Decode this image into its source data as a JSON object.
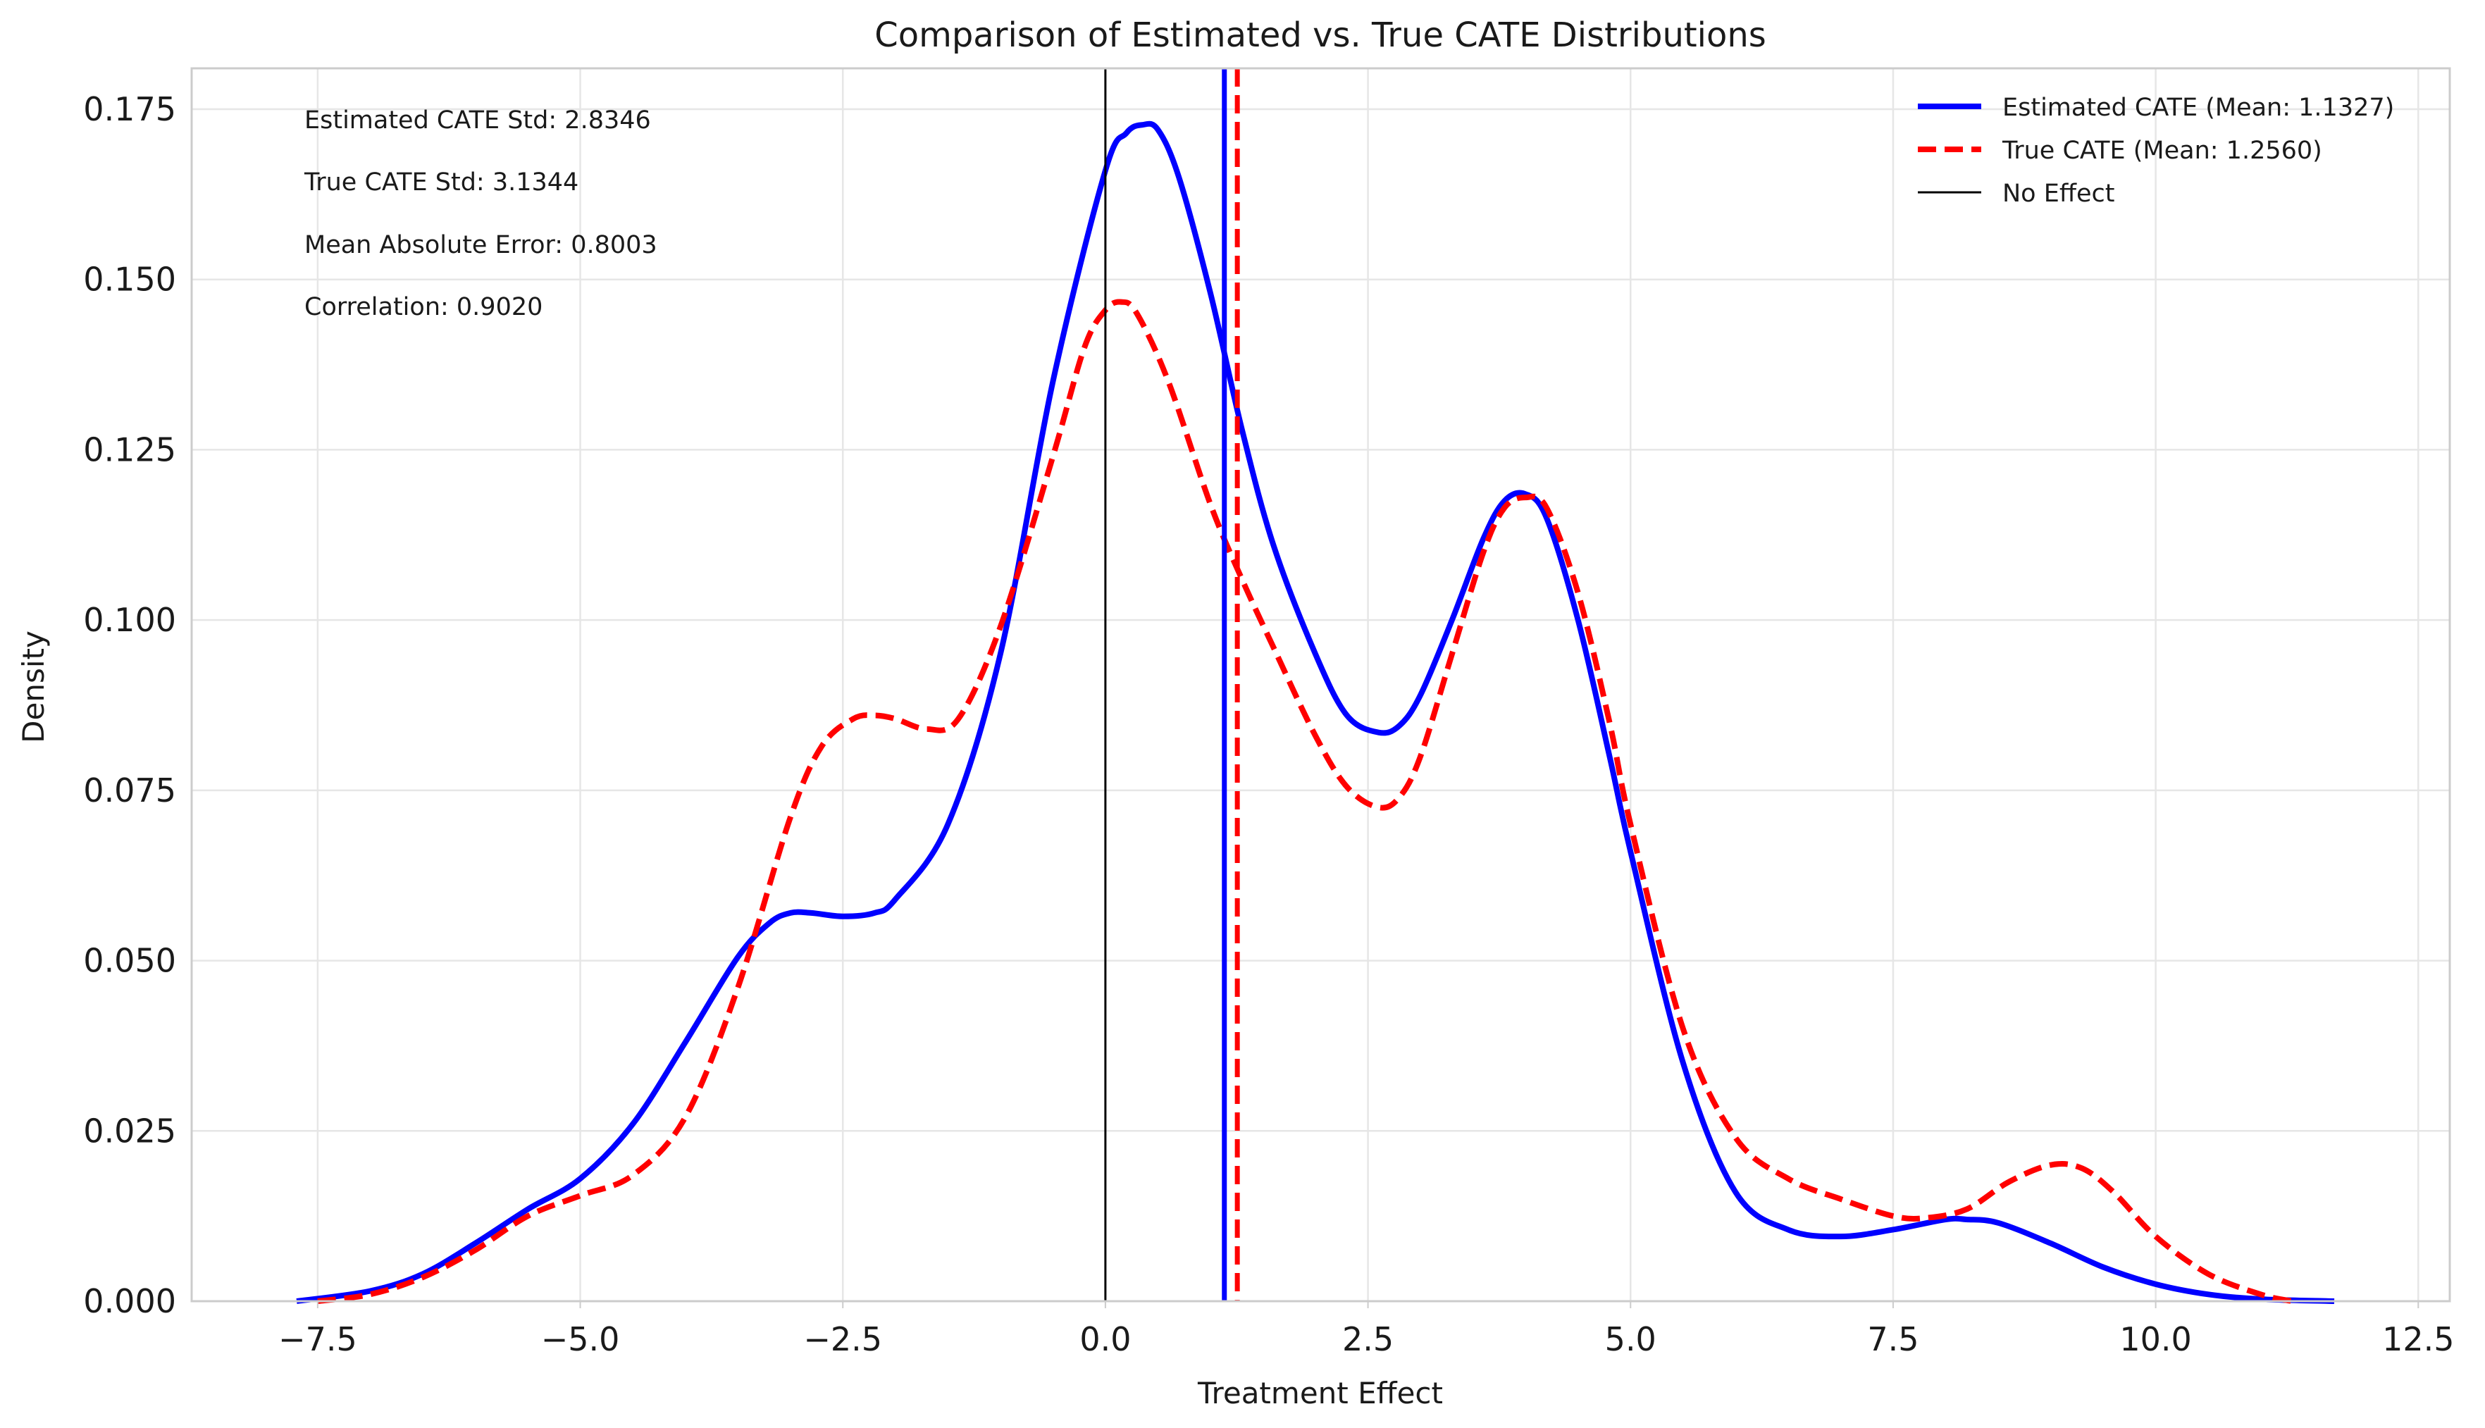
{
  "chart_data": {
    "type": "line",
    "title": "Comparison of Estimated vs. True CATE Distributions",
    "xlabel": "Treatment Effect",
    "ylabel": "Density",
    "xlim": [
      -8.7,
      12.8
    ],
    "ylim": [
      0.0,
      0.181
    ],
    "x_ticks": [
      -7.5,
      -5.0,
      -2.5,
      0.0,
      2.5,
      5.0,
      7.5,
      10.0,
      12.5
    ],
    "x_tick_labels": [
      "−7.5",
      "−5.0",
      "−2.5",
      "0.0",
      "2.5",
      "5.0",
      "7.5",
      "10.0",
      "12.5"
    ],
    "y_ticks": [
      0.0,
      0.025,
      0.05,
      0.075,
      0.1,
      0.125,
      0.15,
      0.175
    ],
    "y_tick_labels": [
      "0.000",
      "0.025",
      "0.050",
      "0.075",
      "0.100",
      "0.125",
      "0.150",
      "0.175"
    ],
    "grid": true,
    "legend_position": "top-right",
    "annotations": [
      "Estimated CATE Std: 2.8346",
      "True CATE Std: 3.1344",
      "Mean Absolute Error: 0.8003",
      "Correlation: 0.9020"
    ],
    "series": [
      {
        "name": "Estimated CATE (Mean: 1.1327)",
        "color": "#0000ff",
        "style": "solid",
        "x": [
          -7.7,
          -7.0,
          -6.5,
          -6.0,
          -5.5,
          -5.0,
          -4.5,
          -4.0,
          -3.5,
          -3.2,
          -3.0,
          -2.8,
          -2.5,
          -2.2,
          -2.0,
          -1.5,
          -1.0,
          -0.5,
          0.0,
          0.2,
          0.35,
          0.5,
          0.7,
          1.0,
          1.3,
          1.6,
          2.0,
          2.3,
          2.6,
          2.8,
          3.0,
          3.3,
          3.6,
          3.8,
          4.0,
          4.2,
          4.5,
          4.8,
          5.0,
          5.5,
          6.0,
          6.5,
          7.0,
          7.5,
          8.0,
          8.2,
          8.5,
          9.0,
          9.5,
          10.0,
          10.5,
          11.0,
          11.7
        ],
        "y": [
          0.0,
          0.0015,
          0.004,
          0.0085,
          0.0135,
          0.018,
          0.026,
          0.038,
          0.0505,
          0.0555,
          0.057,
          0.057,
          0.0565,
          0.057,
          0.059,
          0.07,
          0.095,
          0.135,
          0.166,
          0.1715,
          0.1727,
          0.172,
          0.165,
          0.148,
          0.128,
          0.111,
          0.095,
          0.086,
          0.0835,
          0.0845,
          0.089,
          0.1,
          0.112,
          0.1175,
          0.1185,
          0.115,
          0.1,
          0.08,
          0.066,
          0.035,
          0.016,
          0.0105,
          0.0095,
          0.0105,
          0.012,
          0.012,
          0.0115,
          0.0085,
          0.005,
          0.0025,
          0.001,
          0.0003,
          0.0
        ]
      },
      {
        "name": "True CATE (Mean: 1.2560)",
        "color": "#ff0000",
        "style": "dashed",
        "x": [
          -7.5,
          -7.0,
          -6.5,
          -6.0,
          -5.5,
          -5.0,
          -4.5,
          -4.0,
          -3.5,
          -3.0,
          -2.7,
          -2.4,
          -2.2,
          -2.0,
          -1.7,
          -1.4,
          -1.0,
          -0.5,
          -0.2,
          0.0,
          0.15,
          0.3,
          0.6,
          1.0,
          1.3,
          1.6,
          2.0,
          2.3,
          2.6,
          2.8,
          3.0,
          3.3,
          3.6,
          3.8,
          4.0,
          4.2,
          4.5,
          4.8,
          5.0,
          5.5,
          6.0,
          6.5,
          7.0,
          7.5,
          7.8,
          8.2,
          8.6,
          9.0,
          9.3,
          9.6,
          10.0,
          10.5,
          11.0,
          11.3
        ],
        "y": [
          0.0,
          0.001,
          0.0035,
          0.0075,
          0.0125,
          0.0155,
          0.0185,
          0.027,
          0.046,
          0.071,
          0.0815,
          0.0855,
          0.086,
          0.0855,
          0.084,
          0.0855,
          0.099,
          0.124,
          0.14,
          0.1455,
          0.1467,
          0.145,
          0.135,
          0.117,
          0.106,
          0.096,
          0.083,
          0.0755,
          0.0725,
          0.074,
          0.08,
          0.095,
          0.11,
          0.1165,
          0.118,
          0.1165,
          0.104,
          0.085,
          0.07,
          0.04,
          0.024,
          0.018,
          0.015,
          0.0125,
          0.0122,
          0.0135,
          0.0175,
          0.02,
          0.0195,
          0.016,
          0.0095,
          0.004,
          0.001,
          0.0
        ]
      }
    ],
    "reference_lines": [
      {
        "name": "No Effect",
        "x": 0.0,
        "color": "#000000",
        "style": "solid"
      },
      {
        "name": "Estimated CATE mean",
        "x": 1.1327,
        "color": "#0000ff",
        "style": "solid"
      },
      {
        "name": "True CATE mean",
        "x": 1.256,
        "color": "#ff0000",
        "style": "dashed"
      }
    ],
    "legend": [
      {
        "label": "Estimated CATE (Mean: 1.1327)",
        "color": "#0000ff",
        "style": "solid"
      },
      {
        "label": "True CATE (Mean: 1.2560)",
        "color": "#ff0000",
        "style": "dashed"
      },
      {
        "label": "No Effect",
        "color": "#000000",
        "style": "solid"
      }
    ]
  }
}
